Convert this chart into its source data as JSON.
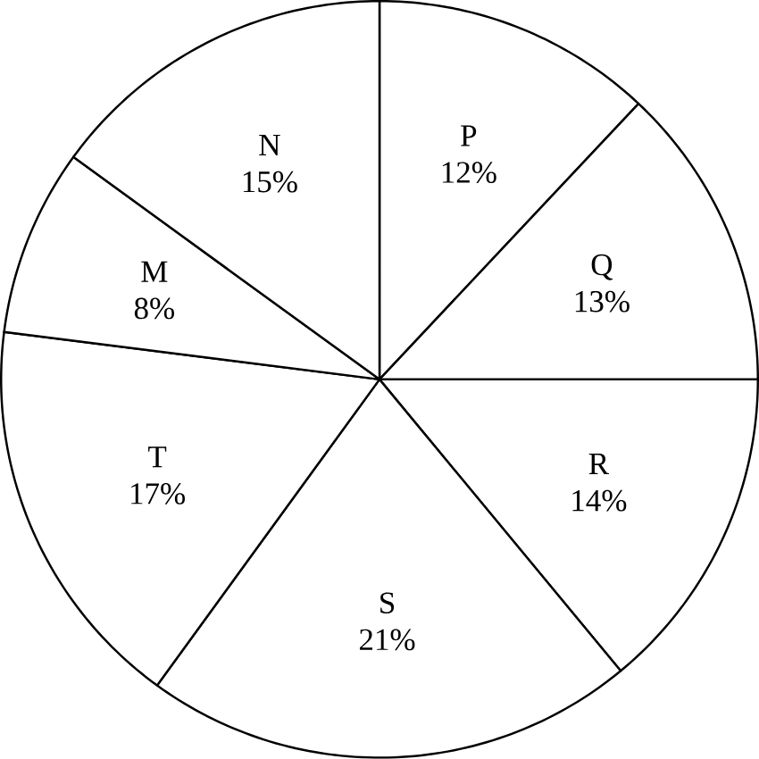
{
  "chart_data": {
    "type": "pie",
    "categories": [
      "P",
      "Q",
      "R",
      "S",
      "T",
      "M",
      "N"
    ],
    "values": [
      12,
      13,
      14,
      21,
      17,
      8,
      15
    ],
    "value_labels": [
      "12%",
      "13%",
      "14%",
      "21%",
      "17%",
      "8%",
      "15%"
    ],
    "colors": [
      "#ffffff",
      "#ffffff",
      "#ffffff",
      "#ffffff",
      "#ffffff",
      "#ffffff",
      "#ffffff"
    ]
  }
}
